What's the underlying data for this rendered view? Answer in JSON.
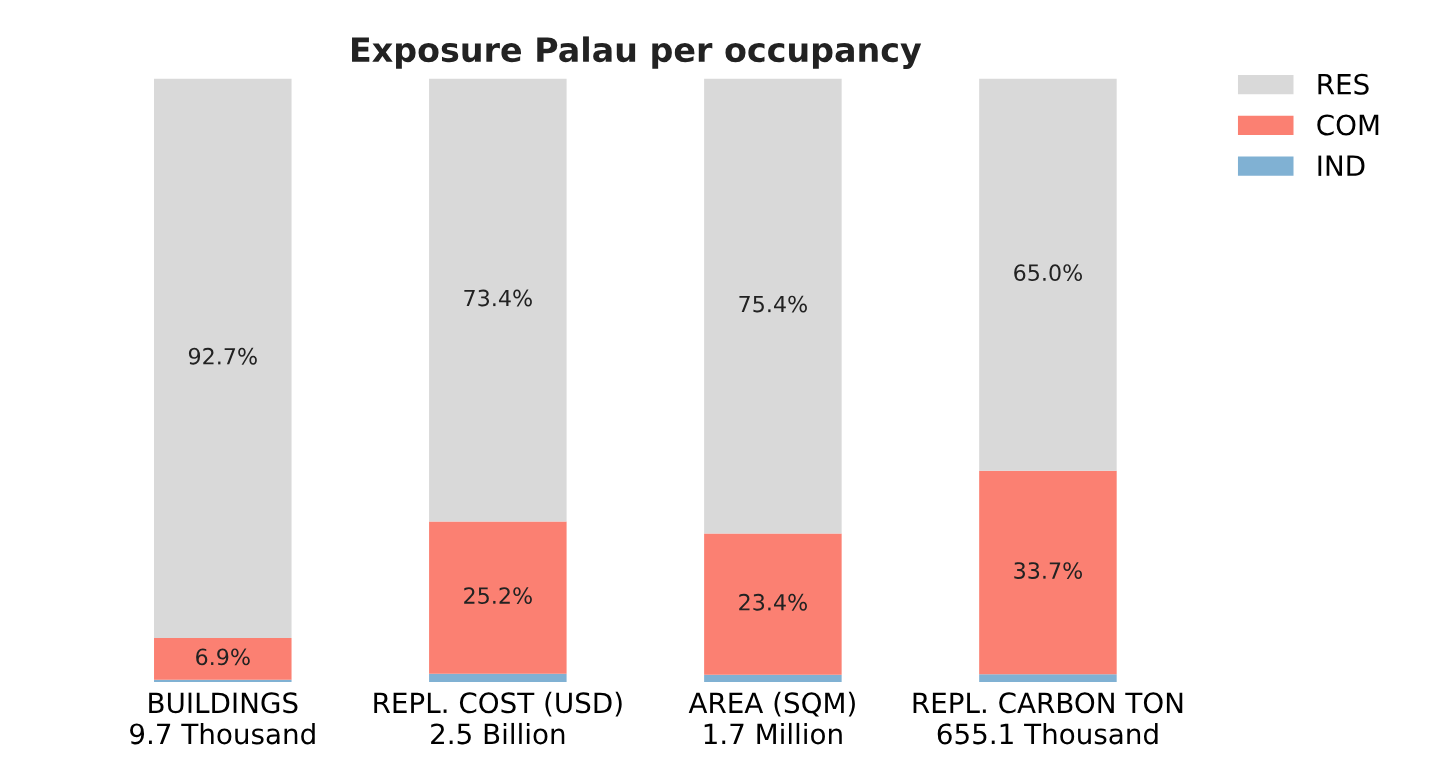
{
  "chart_data": {
    "type": "bar",
    "stacked": true,
    "title": "Exposure Palau per occupancy",
    "categories": [
      "BUILDINGS\n9.7 Thousand",
      "REPL. COST (USD)\n2.5 Billion",
      "AREA (SQM)\n1.7 Million",
      "REPL. CARBON TON\n655.1 Thousand"
    ],
    "series": [
      {
        "name": "IND",
        "color": "#80b1d3",
        "values": [
          0.4,
          1.4,
          1.2,
          1.3
        ],
        "value_labels": [
          null,
          null,
          null,
          null
        ]
      },
      {
        "name": "COM",
        "color": "#fb8072",
        "values": [
          6.9,
          25.2,
          23.4,
          33.7
        ],
        "value_labels": [
          "6.9%",
          "25.2%",
          "23.4%",
          "33.7%"
        ]
      },
      {
        "name": "RES",
        "color": "#d9d9d9",
        "values": [
          92.7,
          73.4,
          75.4,
          65.0
        ],
        "value_labels": [
          "92.7%",
          "73.4%",
          "75.4%",
          "65.0%"
        ]
      }
    ],
    "ylim": [
      0,
      100
    ],
    "tick_labels": "x",
    "grid": false,
    "legend": "top right"
  }
}
